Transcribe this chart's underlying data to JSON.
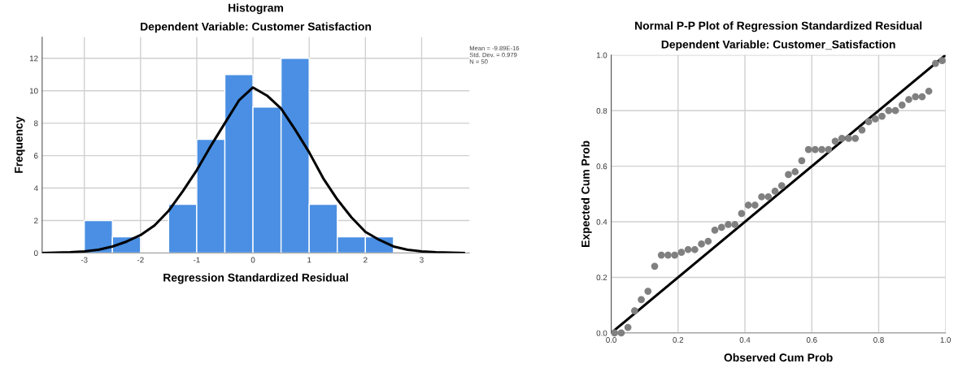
{
  "chart_data": [
    {
      "type": "histogram",
      "title": "Histogram",
      "subtitle": "Dependent Variable: Customer Satisfaction",
      "xlabel": "Regression Standardized Residual",
      "ylabel": "Frequency",
      "bins": [
        -3,
        -2.5,
        -2,
        -1.5,
        -1,
        -0.5,
        0,
        0.5,
        1,
        1.5,
        2,
        2.5
      ],
      "series": [
        {
          "color": "#4a8fe3",
          "values": [
            2,
            1,
            0,
            3,
            7,
            11,
            9,
            12,
            3,
            1,
            1
          ]
        },
        {
          "type": "line",
          "color": "#000000",
          "x": [
            -3.75,
            -3.5,
            -3.25,
            -3,
            -2.75,
            -2.5,
            -2.25,
            -2,
            -1.75,
            -1.5,
            -1.25,
            -1,
            -0.75,
            -0.5,
            -0.25,
            0,
            0.25,
            0.5,
            0.75,
            1,
            1.25,
            1.5,
            1.75,
            2,
            2.25,
            2.5,
            2.75,
            3,
            3.25,
            3.5,
            3.75
          ],
          "values": [
            0.0,
            0.02,
            0.05,
            0.1,
            0.2,
            0.4,
            0.7,
            1.1,
            1.7,
            2.6,
            3.8,
            5.1,
            6.6,
            8.0,
            9.4,
            10.2,
            9.7,
            8.9,
            7.6,
            6.2,
            4.6,
            3.3,
            2.2,
            1.3,
            0.8,
            0.4,
            0.2,
            0.1,
            0.05,
            0.02,
            0.0
          ]
        }
      ],
      "xlim": [
        -3.75,
        3.85
      ],
      "ylim": [
        0,
        13.3
      ],
      "xticks": [
        -3,
        -2,
        -1,
        0,
        1,
        2,
        3
      ],
      "yticks": [
        0,
        2,
        4,
        6,
        8,
        10,
        12
      ],
      "grid": true,
      "annotations": [
        "Mean = -9.89E-16\nStd. Dev. = 0.979\nN = 50"
      ]
    },
    {
      "type": "scatter",
      "title": "Normal P-P Plot of Regression Standardized Residual",
      "subtitle": "Dependent Variable: Customer_Satisfaction",
      "xlabel": "Observed Cum Prob",
      "ylabel": "Expected Cum Prob",
      "series": [
        {
          "marker": "circle",
          "color": "#808080",
          "x": [
            0.01,
            0.03,
            0.05,
            0.07,
            0.09,
            0.11,
            0.13,
            0.15,
            0.17,
            0.19,
            0.21,
            0.23,
            0.25,
            0.27,
            0.29,
            0.31,
            0.33,
            0.35,
            0.37,
            0.39,
            0.41,
            0.43,
            0.45,
            0.47,
            0.49,
            0.51,
            0.53,
            0.55,
            0.57,
            0.59,
            0.61,
            0.63,
            0.65,
            0.67,
            0.69,
            0.71,
            0.73,
            0.75,
            0.77,
            0.79,
            0.81,
            0.83,
            0.85,
            0.87,
            0.89,
            0.91,
            0.93,
            0.95,
            0.97,
            0.99
          ],
          "values": [
            0.0,
            0.0,
            0.02,
            0.08,
            0.12,
            0.15,
            0.24,
            0.28,
            0.28,
            0.28,
            0.29,
            0.3,
            0.3,
            0.32,
            0.33,
            0.37,
            0.38,
            0.39,
            0.39,
            0.43,
            0.46,
            0.46,
            0.49,
            0.49,
            0.51,
            0.53,
            0.57,
            0.58,
            0.62,
            0.66,
            0.66,
            0.66,
            0.66,
            0.69,
            0.7,
            0.7,
            0.7,
            0.73,
            0.76,
            0.77,
            0.78,
            0.8,
            0.8,
            0.82,
            0.84,
            0.85,
            0.85,
            0.87,
            0.97,
            0.98
          ]
        },
        {
          "type": "line",
          "color": "#000000",
          "x": [
            0,
            1
          ],
          "values": [
            0,
            1
          ]
        }
      ],
      "xlim": [
        0,
        1
      ],
      "ylim": [
        0,
        1
      ],
      "xticks": [
        {
          "value": 0,
          "label": "0.0"
        },
        {
          "value": 0.2,
          "label": "0.2"
        },
        {
          "value": 0.4,
          "label": "0.4"
        },
        {
          "value": 0.6,
          "label": "0.6"
        },
        {
          "value": 0.8,
          "label": "0.8"
        },
        {
          "value": 1,
          "label": "1.0"
        }
      ],
      "yticks": [
        {
          "value": 0,
          "label": "0.0"
        },
        {
          "value": 0.2,
          "label": "0.2"
        },
        {
          "value": 0.4,
          "label": "0.4"
        },
        {
          "value": 0.6,
          "label": "0.6"
        },
        {
          "value": 0.8,
          "label": "0.8"
        },
        {
          "value": 1,
          "label": "1.0"
        }
      ],
      "grid": true
    }
  ]
}
